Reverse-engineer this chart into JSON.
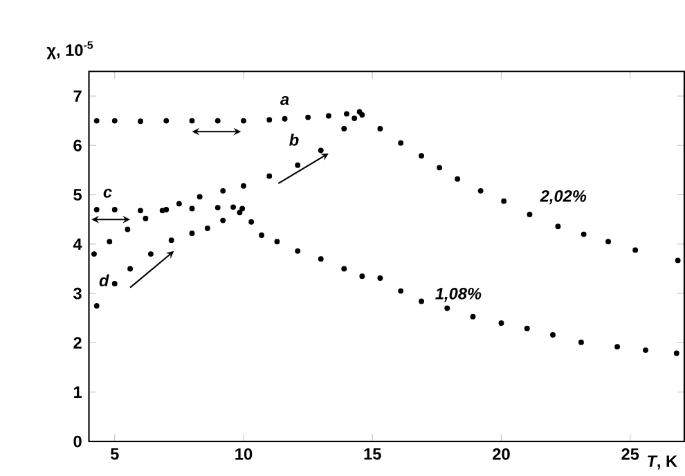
{
  "chart_data": {
    "type": "scatter",
    "xlabel": "*T*, K",
    "ylabel": "χ, 10$^{-5}$",
    "xlim": [
      4,
      27.1
    ],
    "ylim": [
      0,
      7.5
    ],
    "xticks": [
      5,
      10,
      15,
      20,
      25
    ],
    "yticks": [
      0,
      1,
      2,
      3,
      4,
      5,
      6,
      7
    ],
    "series": [
      {
        "name": "a",
        "color": "#000000",
        "x": [
          4.3,
          5,
          6,
          7,
          8,
          9,
          10,
          11,
          11.6,
          12.5,
          13.3,
          14,
          14.5
        ],
        "values": [
          6.5,
          6.5,
          6.49,
          6.5,
          6.5,
          6.5,
          6.5,
          6.52,
          6.54,
          6.57,
          6.6,
          6.64,
          6.68
        ]
      },
      {
        "name": "b",
        "color": "#000000",
        "x": [
          4.2,
          4.8,
          5.5,
          6.2,
          6.85,
          7.5,
          8.3,
          9.2,
          10,
          11,
          12.1,
          13,
          13.9,
          14.3
        ],
        "values": [
          3.8,
          4.05,
          4.3,
          4.52,
          4.68,
          4.82,
          4.96,
          5.08,
          5.18,
          5.38,
          5.6,
          5.9,
          6.34,
          6.55
        ]
      },
      {
        "name": "2,02%",
        "color": "#000000",
        "x": [
          14.6,
          15.3,
          16.1,
          16.9,
          17.6,
          18.3,
          19.2,
          20.1,
          21.1,
          22.2,
          23.2,
          24.15,
          25.2,
          26.85
        ],
        "values": [
          6.62,
          6.34,
          6.05,
          5.79,
          5.55,
          5.32,
          5.08,
          4.87,
          4.6,
          4.36,
          4.2,
          4.05,
          3.88,
          3.67
        ]
      },
      {
        "name": "c",
        "color": "#000000",
        "x": [
          4.3,
          5,
          6,
          7,
          8,
          9,
          9.6
        ],
        "values": [
          4.7,
          4.7,
          4.68,
          4.7,
          4.72,
          4.74,
          4.75
        ]
      },
      {
        "name": "d",
        "color": "#000000",
        "x": [
          4.3,
          5,
          5.6,
          6.4,
          7.2,
          8,
          8.6,
          9.2,
          9.85
        ],
        "values": [
          2.75,
          3.2,
          3.5,
          3.8,
          4.08,
          4.22,
          4.32,
          4.48,
          4.64
        ]
      },
      {
        "name": "1,08%",
        "color": "#000000",
        "x": [
          9.95,
          10.3,
          10.7,
          11.3,
          12.1,
          13,
          13.9,
          14.6,
          15.3,
          16.1,
          16.9,
          17.9,
          18.9,
          20,
          21,
          22,
          23.1,
          24.5,
          25.6,
          26.8
        ],
        "values": [
          4.72,
          4.45,
          4.18,
          4.05,
          3.86,
          3.7,
          3.5,
          3.35,
          3.31,
          3.05,
          2.84,
          2.7,
          2.53,
          2.4,
          2.29,
          2.16,
          2.01,
          1.92,
          1.85,
          1.79
        ]
      }
    ]
  }
}
